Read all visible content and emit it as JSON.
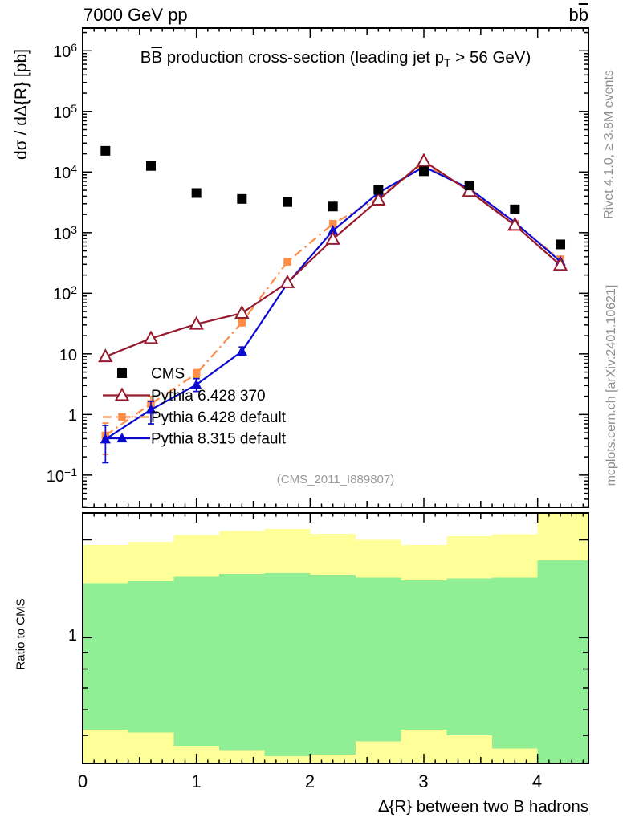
{
  "header": {
    "left": "7000 GeV pp",
    "right_plain": "b",
    "right_barred": "b"
  },
  "title": {
    "pre": "B",
    "barred": "B",
    "mid": " production cross-section (leading jet p",
    "sub": "T",
    "post": " > 56 GeV)"
  },
  "watermark": "(CMS_2011_I889807)",
  "side_notes": {
    "top": "Rivet 4.1.0, ≥ 3.8M events",
    "bottom": "mcplots.cern.ch [arXiv:2401.10621]"
  },
  "axes": {
    "x": {
      "label": "Δ{R} between two B hadrons",
      "min": 0,
      "max": 4.447,
      "tick_values": [
        0,
        1,
        2,
        3,
        4
      ],
      "tick_labels": [
        "0",
        "1",
        "2",
        "3",
        "4"
      ]
    },
    "ymain": {
      "label": "dσ / dΔ{R} [pb]",
      "scale": "log",
      "tick_labels": [
        {
          "base": "10",
          "exp": "6"
        },
        {
          "base": "10",
          "exp": "5"
        },
        {
          "base": "10",
          "exp": "4"
        },
        {
          "base": "10",
          "exp": "3"
        },
        {
          "base": "10",
          "exp": "2"
        },
        {
          "base": "10",
          "exp": ""
        },
        {
          "base": "1",
          "exp": ""
        },
        {
          "base": "10",
          "exp": "−1"
        }
      ]
    }
  },
  "legend": {
    "items": [
      {
        "label": "CMS",
        "marker": "square",
        "color": "#000000",
        "line": "none",
        "msize": 12
      },
      {
        "label": "Pythia 6.428 370",
        "marker": "triangle-open",
        "color": "#961b2e",
        "line": "solid",
        "msize": 13
      },
      {
        "label": "Pythia 6.428 default",
        "marker": "square",
        "color": "#ff8c47",
        "line": "dashdot",
        "msize": 9.5
      },
      {
        "label": "Pythia 8.315 default",
        "marker": "triangle",
        "color": "#0a0ad0",
        "line": "solid",
        "msize": 11.5
      }
    ]
  },
  "ratio_panel": {
    "ylabel": "Ratio to CMS",
    "ytick_label": "1",
    "scale": "log",
    "yrange": [
      0.41,
      2.42
    ],
    "band_colors": {
      "yellow": "#ffff99",
      "green": "#90ee95"
    },
    "bands": {
      "bin_edges": [
        0,
        0.4,
        0.8,
        1.2,
        1.6,
        2.0,
        2.4,
        2.8,
        3.2,
        3.6,
        4.0,
        4.447
      ],
      "yellow_top": [
        1.93,
        1.97,
        2.07,
        2.13,
        2.16,
        2.09,
        2.0,
        1.93,
        2.05,
        2.08,
        2.42
      ],
      "yellow_bottom": [
        0.41,
        0.41,
        0.41,
        0.41,
        0.41,
        0.41,
        0.41,
        0.41,
        0.41,
        0.41,
        0.41
      ],
      "green_top": [
        1.47,
        1.49,
        1.54,
        1.57,
        1.58,
        1.56,
        1.53,
        1.5,
        1.52,
        1.53,
        1.73
      ],
      "green_bottom": [
        0.52,
        0.51,
        0.465,
        0.45,
        0.432,
        0.437,
        0.48,
        0.52,
        0.5,
        0.456,
        0.41
      ]
    }
  },
  "chart_data": {
    "type": "line",
    "xlabel": "Δ{R} between two B hadrons",
    "ylabel": "dσ / dΔ{R} [pb]",
    "xlim": [
      0,
      4.447
    ],
    "ylim": [
      0.0294,
      2370000
    ],
    "x": [
      0.2,
      0.6,
      1.0,
      1.4,
      1.8,
      2.2,
      2.6,
      3.0,
      3.4,
      3.8,
      4.2
    ],
    "series": [
      {
        "name": "CMS",
        "marker": "square",
        "color": "#000000",
        "line": "none",
        "msize": 12,
        "values": [
          22400,
          12600,
          4500,
          3600,
          3200,
          2700,
          5100,
          10300,
          6000,
          2420,
          640
        ]
      },
      {
        "name": "Pythia 6.428 370",
        "marker": "triangle-open",
        "color": "#961b2e",
        "line": "solid",
        "msize": 13,
        "values": [
          9,
          18,
          31,
          47,
          150,
          780,
          3450,
          15200,
          4800,
          1330,
          290
        ]
      },
      {
        "name": "Pythia 6.428 default",
        "marker": "square",
        "color": "#ff8c47",
        "line": "dashdot",
        "msize": 9.5,
        "values": [
          0.45,
          1.5,
          4.7,
          33,
          330,
          1400,
          3730,
          13800,
          5000,
          1400,
          365
        ],
        "yerr_lo": [
          0.22,
          1.1,
          4.0,
          29,
          null,
          null,
          null,
          null,
          null,
          null,
          null
        ],
        "yerr_hi": [
          0.72,
          2.0,
          5.5,
          38,
          null,
          null,
          null,
          null,
          null,
          null,
          null
        ]
      },
      {
        "name": "Pythia 8.315 default",
        "marker": "triangle",
        "color": "#0a0ad0",
        "line": "solid",
        "msize": 11.5,
        "values": [
          0.39,
          1.2,
          3.1,
          11,
          145,
          1080,
          4530,
          12200,
          5330,
          1480,
          335
        ],
        "yerr_lo": [
          0.16,
          0.7,
          2.4,
          9.5,
          null,
          null,
          null,
          null,
          null,
          null,
          null
        ],
        "yerr_hi": [
          0.66,
          1.65,
          3.9,
          13,
          null,
          null,
          null,
          null,
          null,
          null,
          null
        ]
      }
    ]
  }
}
